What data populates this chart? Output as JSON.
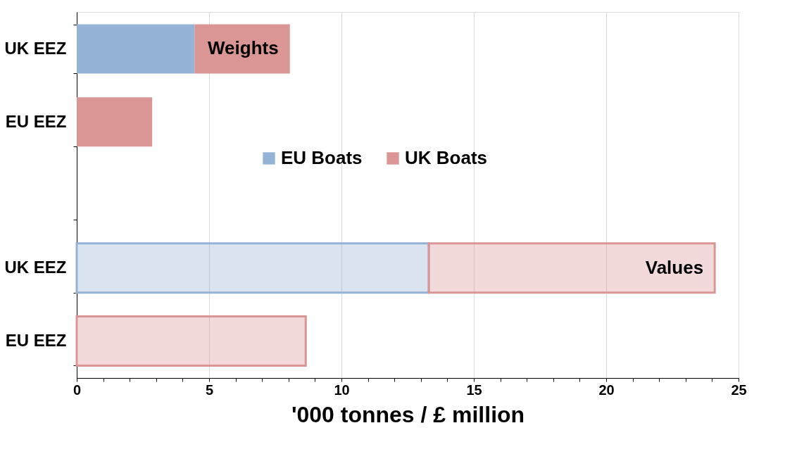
{
  "chart_data": {
    "type": "bar",
    "orientation": "horizontal",
    "stacked": true,
    "categories": [
      "UK EEZ",
      "EU EEZ",
      null,
      "UK EEZ",
      "EU EEZ"
    ],
    "series": [
      {
        "name": "EU Boats",
        "color": "#95b3d7",
        "values": [
          4.45,
          null,
          null,
          13.3,
          null
        ]
      },
      {
        "name": "UK Boats",
        "color": "#d99694",
        "values": [
          3.6,
          2.85,
          null,
          10.8,
          8.65
        ]
      }
    ],
    "xlabel": "'000 tonnes / £ million",
    "xlim": [
      0,
      25
    ],
    "xticks": [
      0,
      {
        "value": 1,
        "label": null
      },
      {
        "value": 2,
        "label": null
      },
      {
        "value": 3,
        "label": null
      },
      {
        "value": 4,
        "label": null
      },
      5,
      {
        "value": 6,
        "label": null
      },
      {
        "value": 7,
        "label": null
      },
      {
        "value": 8,
        "label": null
      },
      {
        "value": 9,
        "label": null
      },
      10,
      {
        "value": 11,
        "label": null
      },
      {
        "value": 12,
        "label": null
      },
      {
        "value": 13,
        "label": null
      },
      {
        "value": 14,
        "label": null
      },
      15,
      {
        "value": 16,
        "label": null
      },
      {
        "value": 17,
        "label": null
      },
      {
        "value": 18,
        "label": null
      },
      {
        "value": 19,
        "label": null
      },
      20,
      {
        "value": 21,
        "label": null
      },
      {
        "value": 22,
        "label": null
      },
      {
        "value": 23,
        "label": null
      },
      {
        "value": 24,
        "label": null
      },
      25
    ],
    "grid": "x",
    "legend": "center",
    "annotations": [
      "Weights",
      "Values"
    ]
  }
}
